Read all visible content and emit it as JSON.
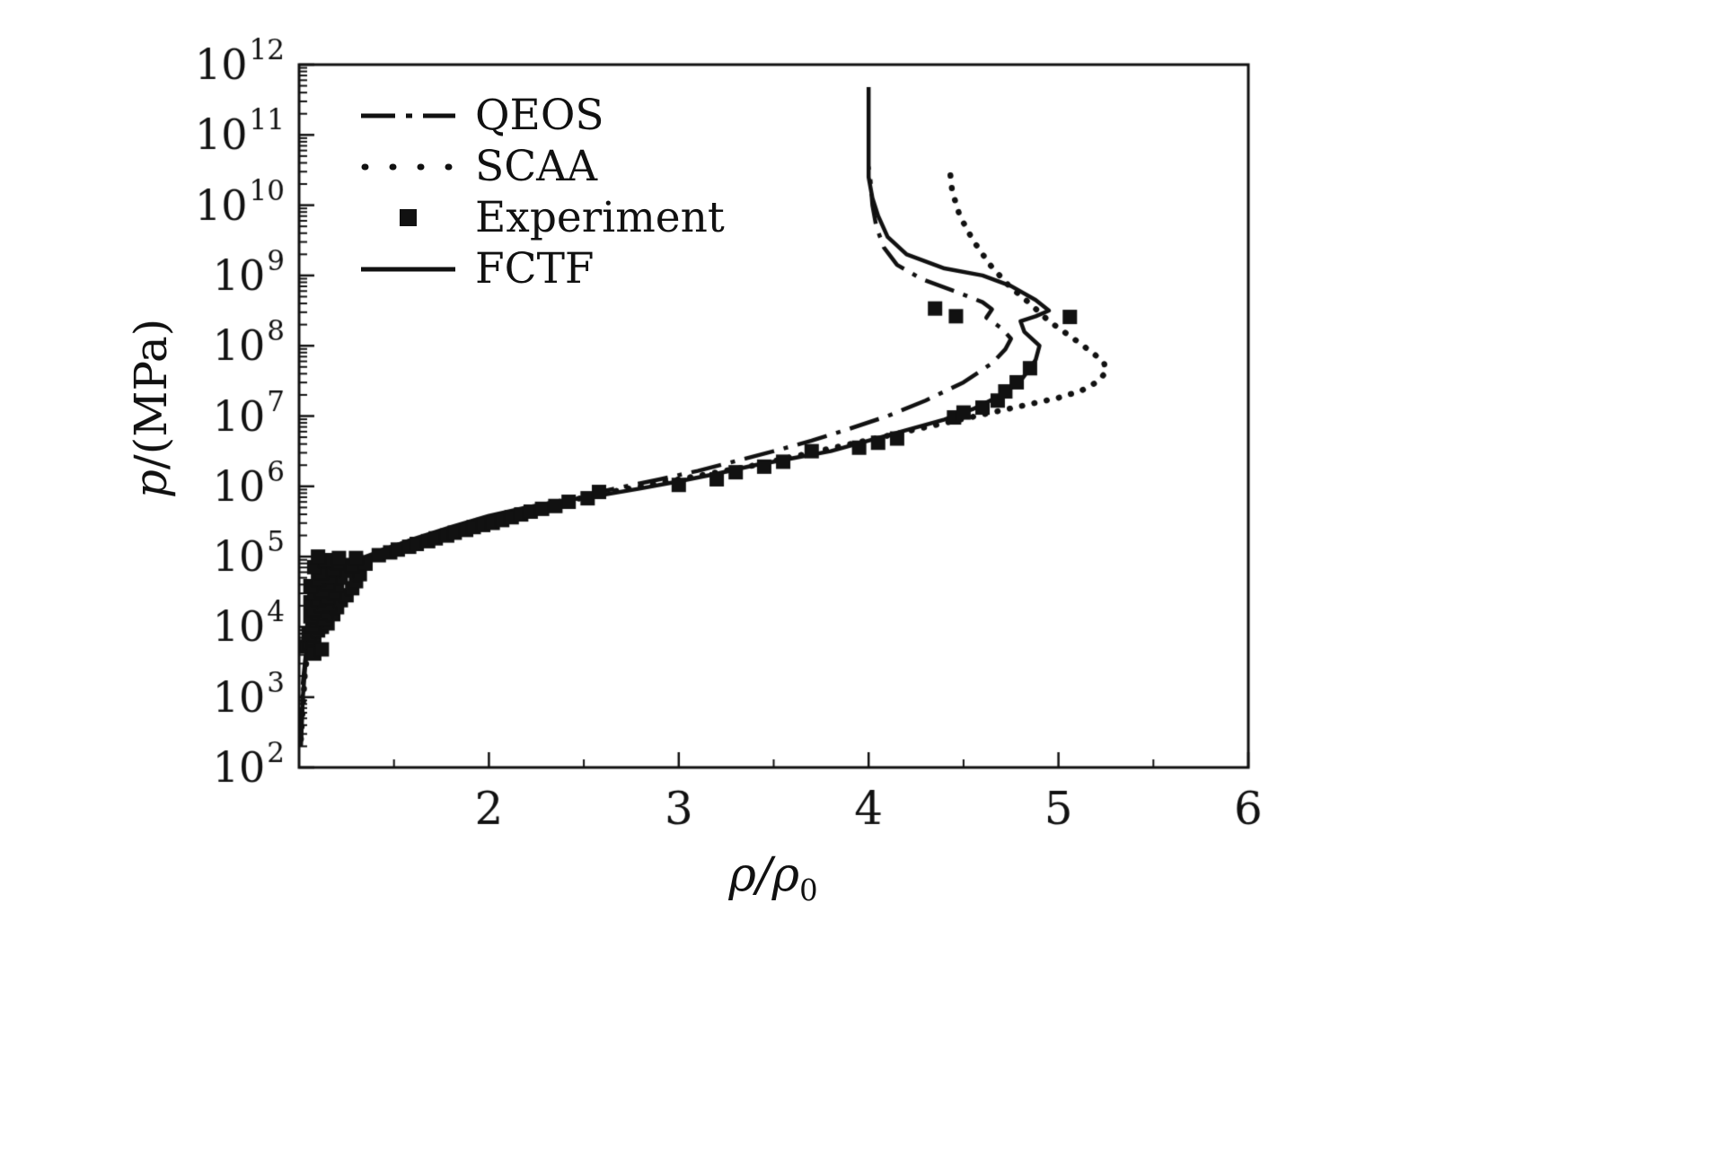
{
  "figure": {
    "background": "#ffffff",
    "ink": "#111111"
  },
  "chart_data": {
    "type": "line",
    "xlabel_main": "ρ/ρ",
    "xlabel_sub": "0",
    "ylabel_italic": "p",
    "ylabel_rest": "/(MPa)",
    "x_axis": {
      "min": 1,
      "max": 6,
      "major_ticks": [
        2,
        3,
        4,
        5,
        6
      ],
      "minor_step": 0.5
    },
    "y_axis": {
      "scale": "log",
      "base_text": "10",
      "min_exp": 2,
      "max_exp": 12
    },
    "grid": "off",
    "points_format": "[rho/rho0, log10(p/MPa)]",
    "legend": {
      "position": "top-left",
      "items": [
        {
          "label": "QEOS",
          "style": "dashdot"
        },
        {
          "label": "SCAA",
          "style": "dotted"
        },
        {
          "label": "Experiment",
          "style": "square"
        },
        {
          "label": "FCTF",
          "style": "solid"
        }
      ]
    },
    "series": [
      {
        "name": "QEOS",
        "style": "dashdot",
        "points": [
          [
            1.01,
            2.4
          ],
          [
            1.02,
            3.2
          ],
          [
            1.05,
            4.0
          ],
          [
            1.1,
            4.5
          ],
          [
            1.2,
            4.85
          ],
          [
            1.35,
            5.02
          ],
          [
            1.5,
            5.15
          ],
          [
            1.7,
            5.32
          ],
          [
            1.9,
            5.48
          ],
          [
            2.1,
            5.62
          ],
          [
            2.3,
            5.75
          ],
          [
            2.5,
            5.87
          ],
          [
            2.7,
            5.99
          ],
          [
            2.9,
            6.1
          ],
          [
            3.1,
            6.22
          ],
          [
            3.3,
            6.36
          ],
          [
            3.5,
            6.5
          ],
          [
            3.7,
            6.65
          ],
          [
            3.9,
            6.82
          ],
          [
            4.1,
            7.0
          ],
          [
            4.3,
            7.22
          ],
          [
            4.5,
            7.48
          ],
          [
            4.65,
            7.75
          ],
          [
            4.72,
            7.95
          ],
          [
            4.75,
            8.1
          ],
          [
            4.7,
            8.25
          ],
          [
            4.62,
            8.4
          ],
          [
            4.65,
            8.52
          ],
          [
            4.6,
            8.62
          ],
          [
            4.45,
            8.78
          ],
          [
            4.28,
            8.95
          ],
          [
            4.15,
            9.15
          ],
          [
            4.08,
            9.4
          ],
          [
            4.04,
            9.7
          ],
          [
            4.02,
            10.0
          ],
          [
            4.01,
            10.35
          ],
          [
            4.0,
            10.55
          ]
        ]
      },
      {
        "name": "SCAA",
        "style": "dotted",
        "points": [
          [
            1.01,
            2.4
          ],
          [
            1.03,
            3.3
          ],
          [
            1.06,
            4.0
          ],
          [
            1.12,
            4.5
          ],
          [
            1.25,
            4.85
          ],
          [
            1.4,
            5.02
          ],
          [
            1.6,
            5.2
          ],
          [
            1.8,
            5.37
          ],
          [
            2.0,
            5.52
          ],
          [
            2.2,
            5.66
          ],
          [
            2.4,
            5.78
          ],
          [
            2.6,
            5.9
          ],
          [
            2.8,
            6.0
          ],
          [
            3.0,
            6.1
          ],
          [
            3.2,
            6.2
          ],
          [
            3.4,
            6.3
          ],
          [
            3.6,
            6.42
          ],
          [
            3.8,
            6.54
          ],
          [
            4.0,
            6.66
          ],
          [
            4.2,
            6.78
          ],
          [
            4.4,
            6.9
          ],
          [
            4.6,
            7.02
          ],
          [
            4.8,
            7.14
          ],
          [
            5.0,
            7.26
          ],
          [
            5.12,
            7.36
          ],
          [
            5.2,
            7.48
          ],
          [
            5.25,
            7.62
          ],
          [
            5.24,
            7.76
          ],
          [
            5.18,
            7.9
          ],
          [
            5.08,
            8.1
          ],
          [
            4.95,
            8.35
          ],
          [
            4.85,
            8.6
          ],
          [
            4.74,
            8.85
          ],
          [
            4.64,
            9.15
          ],
          [
            4.55,
            9.5
          ],
          [
            4.48,
            9.85
          ],
          [
            4.44,
            10.2
          ],
          [
            4.43,
            10.45
          ],
          [
            4.45,
            10.58
          ]
        ]
      },
      {
        "name": "FCTF",
        "style": "solid",
        "points": [
          [
            1.01,
            2.3
          ],
          [
            1.02,
            3.0
          ],
          [
            1.04,
            3.7
          ],
          [
            1.07,
            4.2
          ],
          [
            1.12,
            4.55
          ],
          [
            1.2,
            4.8
          ],
          [
            1.3,
            4.95
          ],
          [
            1.45,
            5.1
          ],
          [
            1.6,
            5.25
          ],
          [
            1.8,
            5.42
          ],
          [
            2.0,
            5.58
          ],
          [
            2.2,
            5.7
          ],
          [
            2.4,
            5.8
          ],
          [
            2.6,
            5.88
          ],
          [
            2.8,
            5.97
          ],
          [
            3.0,
            6.07
          ],
          [
            3.2,
            6.18
          ],
          [
            3.4,
            6.3
          ],
          [
            3.6,
            6.4
          ],
          [
            3.8,
            6.5
          ],
          [
            4.0,
            6.65
          ],
          [
            4.2,
            6.8
          ],
          [
            4.4,
            6.95
          ],
          [
            4.55,
            7.1
          ],
          [
            4.7,
            7.3
          ],
          [
            4.8,
            7.5
          ],
          [
            4.85,
            7.68
          ],
          [
            4.88,
            7.8
          ],
          [
            4.9,
            8.0
          ],
          [
            4.82,
            8.2
          ],
          [
            4.8,
            8.35
          ],
          [
            4.88,
            8.42
          ],
          [
            4.95,
            8.5
          ],
          [
            4.88,
            8.65
          ],
          [
            4.75,
            8.85
          ],
          [
            4.6,
            9.0
          ],
          [
            4.4,
            9.1
          ],
          [
            4.2,
            9.3
          ],
          [
            4.1,
            9.55
          ],
          [
            4.05,
            9.85
          ],
          [
            4.02,
            10.1
          ],
          [
            4.0,
            10.4
          ],
          [
            4.0,
            11.68
          ]
        ]
      },
      {
        "name": "Experiment",
        "style": "scatter-square",
        "points": [
          [
            1.04,
            3.72
          ],
          [
            1.06,
            3.78
          ],
          [
            1.08,
            3.62
          ],
          [
            1.08,
            3.85
          ],
          [
            1.05,
            3.9
          ],
          [
            1.1,
            3.95
          ],
          [
            1.12,
            3.68
          ],
          [
            1.12,
            4.0
          ],
          [
            1.07,
            4.02
          ],
          [
            1.15,
            4.05
          ],
          [
            1.09,
            4.1
          ],
          [
            1.13,
            4.12
          ],
          [
            1.06,
            4.15
          ],
          [
            1.18,
            4.18
          ],
          [
            1.1,
            4.2
          ],
          [
            1.14,
            4.22
          ],
          [
            1.08,
            4.25
          ],
          [
            1.2,
            4.28
          ],
          [
            1.12,
            4.3
          ],
          [
            1.16,
            4.32
          ],
          [
            1.06,
            4.35
          ],
          [
            1.22,
            4.38
          ],
          [
            1.1,
            4.4
          ],
          [
            1.15,
            4.42
          ],
          [
            1.25,
            4.45
          ],
          [
            1.08,
            4.48
          ],
          [
            1.18,
            4.5
          ],
          [
            1.12,
            4.52
          ],
          [
            1.28,
            4.55
          ],
          [
            1.06,
            4.58
          ],
          [
            1.2,
            4.6
          ],
          [
            1.15,
            4.62
          ],
          [
            1.3,
            4.65
          ],
          [
            1.1,
            4.68
          ],
          [
            1.22,
            4.7
          ],
          [
            1.16,
            4.72
          ],
          [
            1.32,
            4.75
          ],
          [
            1.12,
            4.78
          ],
          [
            1.25,
            4.8
          ],
          [
            1.18,
            4.82
          ],
          [
            1.08,
            4.85
          ],
          [
            1.28,
            4.88
          ],
          [
            1.35,
            4.9
          ],
          [
            1.2,
            4.92
          ],
          [
            1.14,
            4.95
          ],
          [
            1.3,
            4.98
          ],
          [
            1.1,
            5.0
          ],
          [
            1.21,
            4.98
          ],
          [
            1.42,
            5.02
          ],
          [
            1.48,
            5.06
          ],
          [
            1.52,
            5.1
          ],
          [
            1.58,
            5.14
          ],
          [
            1.62,
            5.18
          ],
          [
            1.68,
            5.22
          ],
          [
            1.72,
            5.26
          ],
          [
            1.78,
            5.3
          ],
          [
            1.82,
            5.34
          ],
          [
            1.88,
            5.38
          ],
          [
            1.92,
            5.42
          ],
          [
            1.97,
            5.45
          ],
          [
            2.02,
            5.48
          ],
          [
            2.07,
            5.52
          ],
          [
            2.12,
            5.56
          ],
          [
            2.17,
            5.6
          ],
          [
            2.22,
            5.64
          ],
          [
            2.28,
            5.68
          ],
          [
            2.35,
            5.72
          ],
          [
            2.42,
            5.78
          ],
          [
            2.52,
            5.83
          ],
          [
            2.58,
            5.92
          ],
          [
            3.0,
            6.02
          ],
          [
            3.2,
            6.1
          ],
          [
            3.3,
            6.2
          ],
          [
            3.45,
            6.28
          ],
          [
            3.55,
            6.35
          ],
          [
            3.7,
            6.5
          ],
          [
            3.95,
            6.55
          ],
          [
            4.05,
            6.62
          ],
          [
            4.15,
            6.68
          ],
          [
            4.45,
            6.98
          ],
          [
            4.5,
            7.05
          ],
          [
            4.6,
            7.12
          ],
          [
            4.68,
            7.22
          ],
          [
            4.72,
            7.35
          ],
          [
            4.78,
            7.48
          ],
          [
            4.85,
            7.68
          ],
          [
            4.35,
            8.53
          ],
          [
            4.46,
            8.42
          ],
          [
            5.06,
            8.41
          ]
        ]
      }
    ]
  }
}
